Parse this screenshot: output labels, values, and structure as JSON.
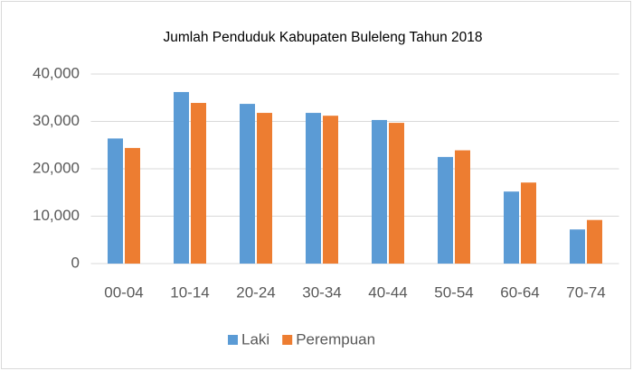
{
  "chart_data": {
    "type": "bar",
    "title": "Jumlah Penduduk Kabupaten Buleleng Tahun 2018",
    "categories": [
      "00-04",
      "10-14",
      "20-24",
      "30-34",
      "40-44",
      "50-54",
      "60-64",
      "70-74"
    ],
    "series": [
      {
        "name": "Laki",
        "color": "#5b9bd5",
        "values": [
          26400,
          36200,
          33700,
          31800,
          30300,
          22500,
          15200,
          7200
        ]
      },
      {
        "name": "Perempuan",
        "color": "#ed7d31",
        "values": [
          24400,
          33900,
          31800,
          31200,
          29700,
          23900,
          17100,
          9200
        ]
      }
    ],
    "ylim": [
      0,
      40000
    ],
    "yticks": [
      0,
      {
        "value": 10000,
        "label": "10,000"
      },
      {
        "value": 20000,
        "label": "20,000"
      },
      {
        "value": 30000,
        "label": "30,000"
      },
      {
        "value": 40000,
        "label": "40,000"
      }
    ],
    "grid": true,
    "legend": "bottom"
  }
}
